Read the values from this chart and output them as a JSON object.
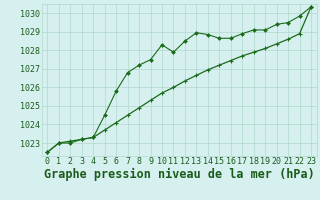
{
  "title": "Graphe pression niveau de la mer (hPa)",
  "x_labels": [
    "0",
    "1",
    "2",
    "3",
    "4",
    "5",
    "6",
    "7",
    "8",
    "9",
    "10",
    "11",
    "12",
    "13",
    "14",
    "15",
    "16",
    "17",
    "18",
    "19",
    "20",
    "21",
    "22",
    "23"
  ],
  "ylim": [
    1022.3,
    1030.5
  ],
  "yticks": [
    1023,
    1024,
    1025,
    1026,
    1027,
    1028,
    1029,
    1030
  ],
  "background_color": "#d6f0f0",
  "grid_color": "#b0d8cc",
  "line_color": "#1a6b1a",
  "line_color2": "#1a6b1a",
  "series1": [
    1022.5,
    1023.0,
    1023.0,
    1023.2,
    1023.3,
    1024.5,
    1025.8,
    1026.8,
    1027.2,
    1027.5,
    1028.3,
    1027.9,
    1028.5,
    1028.95,
    1028.85,
    1028.65,
    1028.65,
    1028.9,
    1029.1,
    1029.1,
    1029.4,
    1029.5,
    1029.85,
    1030.35
  ],
  "series2": [
    1022.5,
    1023.0,
    1023.1,
    1023.2,
    1023.3,
    1023.7,
    1024.1,
    1024.5,
    1024.9,
    1025.3,
    1025.7,
    1026.0,
    1026.35,
    1026.65,
    1026.95,
    1027.2,
    1027.45,
    1027.7,
    1027.9,
    1028.1,
    1028.35,
    1028.6,
    1028.9,
    1030.35
  ],
  "font_color": "#1a5c1a",
  "title_fontsize": 8.5,
  "tick_fontsize": 6,
  "figwidth": 3.2,
  "figheight": 2.0,
  "dpi": 100
}
